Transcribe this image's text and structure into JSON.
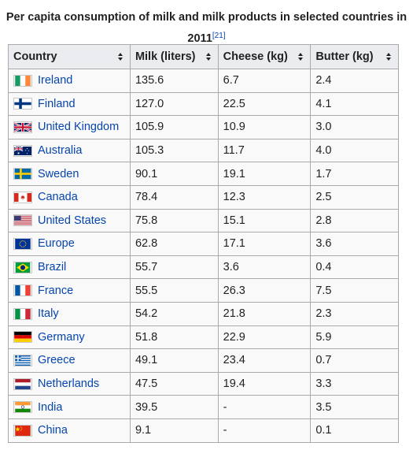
{
  "caption": {
    "text": "Per capita consumption of milk and milk products in selected countries in 2011",
    "ref": "[21]"
  },
  "headers": [
    "Country",
    "Milk (liters)",
    "Cheese (kg)",
    "Butter (kg)"
  ],
  "rows": [
    {
      "country": "Ireland",
      "flag": "ireland-flag-icon",
      "milk": "135.6",
      "cheese": "6.7",
      "butter": "2.4"
    },
    {
      "country": "Finland",
      "flag": "finland-flag-icon",
      "milk": "127.0",
      "cheese": "22.5",
      "butter": "4.1"
    },
    {
      "country": "United Kingdom",
      "flag": "united-kingdom-flag-icon",
      "milk": "105.9",
      "cheese": "10.9",
      "butter": "3.0"
    },
    {
      "country": "Australia",
      "flag": "australia-flag-icon",
      "milk": "105.3",
      "cheese": "11.7",
      "butter": "4.0"
    },
    {
      "country": "Sweden",
      "flag": "sweden-flag-icon",
      "milk": "90.1",
      "cheese": "19.1",
      "butter": "1.7"
    },
    {
      "country": "Canada",
      "flag": "canada-flag-icon",
      "milk": "78.4",
      "cheese": "12.3",
      "butter": "2.5"
    },
    {
      "country": "United States",
      "flag": "united-states-flag-icon",
      "milk": "75.8",
      "cheese": "15.1",
      "butter": "2.8"
    },
    {
      "country": "Europe",
      "flag": "europe-flag-icon",
      "milk": "62.8",
      "cheese": "17.1",
      "butter": "3.6"
    },
    {
      "country": "Brazil",
      "flag": "brazil-flag-icon",
      "milk": "55.7",
      "cheese": "3.6",
      "butter": "0.4"
    },
    {
      "country": "France",
      "flag": "france-flag-icon",
      "milk": "55.5",
      "cheese": "26.3",
      "butter": "7.5"
    },
    {
      "country": "Italy",
      "flag": "italy-flag-icon",
      "milk": "54.2",
      "cheese": "21.8",
      "butter": "2.3"
    },
    {
      "country": "Germany",
      "flag": "germany-flag-icon",
      "milk": "51.8",
      "cheese": "22.9",
      "butter": "5.9"
    },
    {
      "country": "Greece",
      "flag": "greece-flag-icon",
      "milk": "49.1",
      "cheese": "23.4",
      "butter": "0.7"
    },
    {
      "country": "Netherlands",
      "flag": "netherlands-flag-icon",
      "milk": "47.5",
      "cheese": "19.4",
      "butter": "3.3"
    },
    {
      "country": "India",
      "flag": "india-flag-icon",
      "milk": "39.5",
      "cheese": "-",
      "butter": "3.5"
    },
    {
      "country": "China",
      "flag": "china-flag-icon",
      "milk": "9.1",
      "cheese": "-",
      "butter": "0.1"
    }
  ],
  "colors": {
    "link": "#0645ad",
    "header_bg": "#eaecf0",
    "cell_bg": "#f9f9f9",
    "border": "#aaaaaa"
  }
}
